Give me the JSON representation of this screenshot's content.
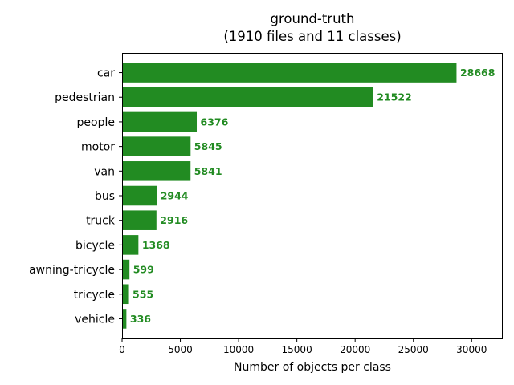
{
  "chart_data": {
    "type": "bar",
    "orientation": "horizontal",
    "title_line1": "ground-truth",
    "title_line2": "(1910 files and 11 classes)",
    "xlabel": "Number of objects per class",
    "ylabel": "",
    "categories": [
      "car",
      "pedestrian",
      "people",
      "motor",
      "van",
      "bus",
      "truck",
      "bicycle",
      "awning-tricycle",
      "tricycle",
      "vehicle"
    ],
    "values": [
      28668,
      21522,
      6376,
      5845,
      5841,
      2944,
      2916,
      1368,
      599,
      555,
      336
    ],
    "value_labels": [
      "28668",
      "21522",
      "6376",
      "5845",
      "5841",
      "2944",
      "2916",
      "1368",
      "599",
      "555",
      "336"
    ],
    "xlim": [
      0,
      32600
    ],
    "xticks": [
      0,
      5000,
      10000,
      15000,
      20000,
      25000,
      30000
    ],
    "xtick_labels": [
      "0",
      "5000",
      "10000",
      "15000",
      "20000",
      "25000",
      "30000"
    ],
    "bar_color": "#228b22",
    "label_color": "#228b22",
    "grid": false,
    "legend": "none"
  }
}
